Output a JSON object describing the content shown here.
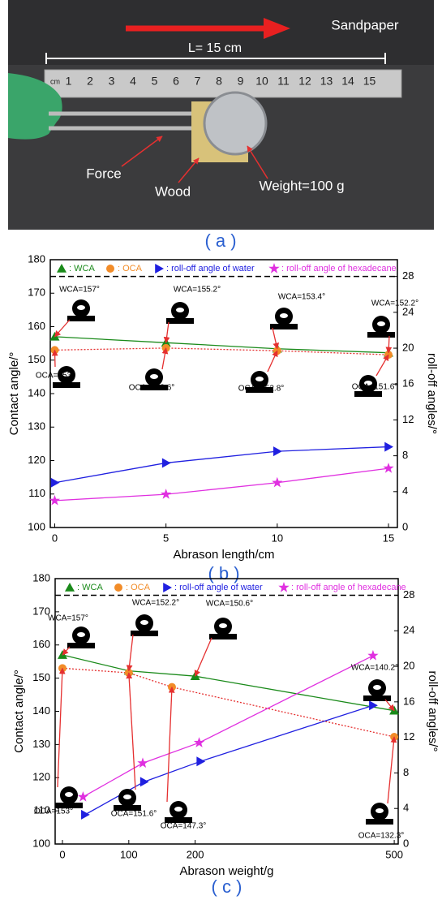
{
  "photo": {
    "title": "Sandpaper",
    "length_label": "L= 15 cm",
    "force_label": "Force",
    "wood_label": "Wood",
    "weight_label": "Weight=100 g",
    "caption": "( a )",
    "ruler_labels": [
      "cm",
      "1",
      "2",
      "3",
      "4",
      "5",
      "6",
      "7",
      "8",
      "9",
      "10",
      "11",
      "12",
      "13",
      "14",
      "15"
    ]
  },
  "chart_data": [
    {
      "type": "line",
      "caption": "( b )",
      "x_label": "Abrason length/cm",
      "y_label": "Contact angle/°",
      "y2_label": "roll-off angles/°",
      "x": [
        0,
        5,
        10,
        15
      ],
      "xlim": [
        -0.2,
        15.4
      ],
      "xticks": [
        0,
        5,
        10,
        15
      ],
      "ylim": [
        100,
        180
      ],
      "yticks": [
        100,
        110,
        120,
        130,
        140,
        150,
        160,
        170,
        180
      ],
      "y2lim": [
        0,
        29.87
      ],
      "y2ticks": [
        0,
        4,
        8,
        12,
        16,
        20,
        24,
        28
      ],
      "reference_line": 175,
      "series": [
        {
          "name": ": WCA",
          "color": "#1a8a1a",
          "marker": "triangle-up",
          "values": [
            157,
            155.2,
            153.4,
            152.2
          ]
        },
        {
          "name": ": OCA",
          "color": "#f28c28",
          "line_color": "#e53030",
          "line_style": "dotted",
          "marker": "circle",
          "values": [
            153,
            153.6,
            152.8,
            151.6
          ]
        },
        {
          "name": ": roll-off angle of water",
          "color": "#2020e0",
          "marker": "triangle-right",
          "axis": "y2",
          "values": [
            5.0,
            7.2,
            8.5,
            9.0
          ]
        },
        {
          "name": ": roll-off angle of hexadecane",
          "color": "#e030e0",
          "marker": "star",
          "axis": "y2",
          "values": [
            3.0,
            3.7,
            5.0,
            6.6
          ]
        }
      ],
      "annotations": [
        "WCA=157°",
        "WCA=155.2°",
        "WCA=153.4°",
        "WCA=152.2°",
        "OCA=153°",
        "OCA=153.6°",
        "OCA=152.8°",
        "OCA=151.6°"
      ]
    },
    {
      "type": "line",
      "caption": "( c )",
      "x_label": "Abrason weight/g",
      "y_label": "Contact angle/°",
      "y2_label": "roll-off angles/°",
      "xlim": [
        -11,
        506
      ],
      "xticks": [
        0,
        100,
        200,
        500
      ],
      "ylim": [
        100,
        180
      ],
      "yticks": [
        100,
        110,
        120,
        130,
        140,
        150,
        160,
        170,
        180
      ],
      "y2lim": [
        0,
        29.87
      ],
      "y2ticks": [
        0,
        4,
        8,
        12,
        16,
        20,
        24,
        28
      ],
      "reference_line": 175,
      "series": [
        {
          "name": ": WCA",
          "color": "#1a8a1a",
          "marker": "triangle-up",
          "x": [
            0,
            100,
            200,
            500
          ],
          "values": [
            157,
            152.2,
            150.6,
            140.2
          ]
        },
        {
          "name": ": OCA",
          "color": "#f28c28",
          "line_color": "#e53030",
          "line_style": "dotted",
          "marker": "circle",
          "x": [
            0,
            100,
            165,
            500
          ],
          "values": [
            153,
            151.6,
            147.3,
            132.3
          ]
        },
        {
          "name": ": roll-off angle of water",
          "color": "#2020e0",
          "marker": "triangle-right",
          "axis": "y2",
          "x": [
            34,
            123,
            208,
            468
          ],
          "values": [
            3.3,
            7.0,
            9.3,
            15.6
          ]
        },
        {
          "name": ": roll-off angle of hexadecane",
          "color": "#e030e0",
          "marker": "star",
          "axis": "y2",
          "x": [
            31,
            121,
            206,
            468
          ],
          "values": [
            5.3,
            9.1,
            11.4,
            21.2
          ]
        }
      ],
      "annotations": [
        "WCA=157°",
        "WCA=152.2°",
        "WCA=150.6°",
        "WCA=140.2°",
        "OCA=153°",
        "OCA=151.6°",
        "OCA=147.3°",
        "OCA=132.3°"
      ]
    }
  ]
}
